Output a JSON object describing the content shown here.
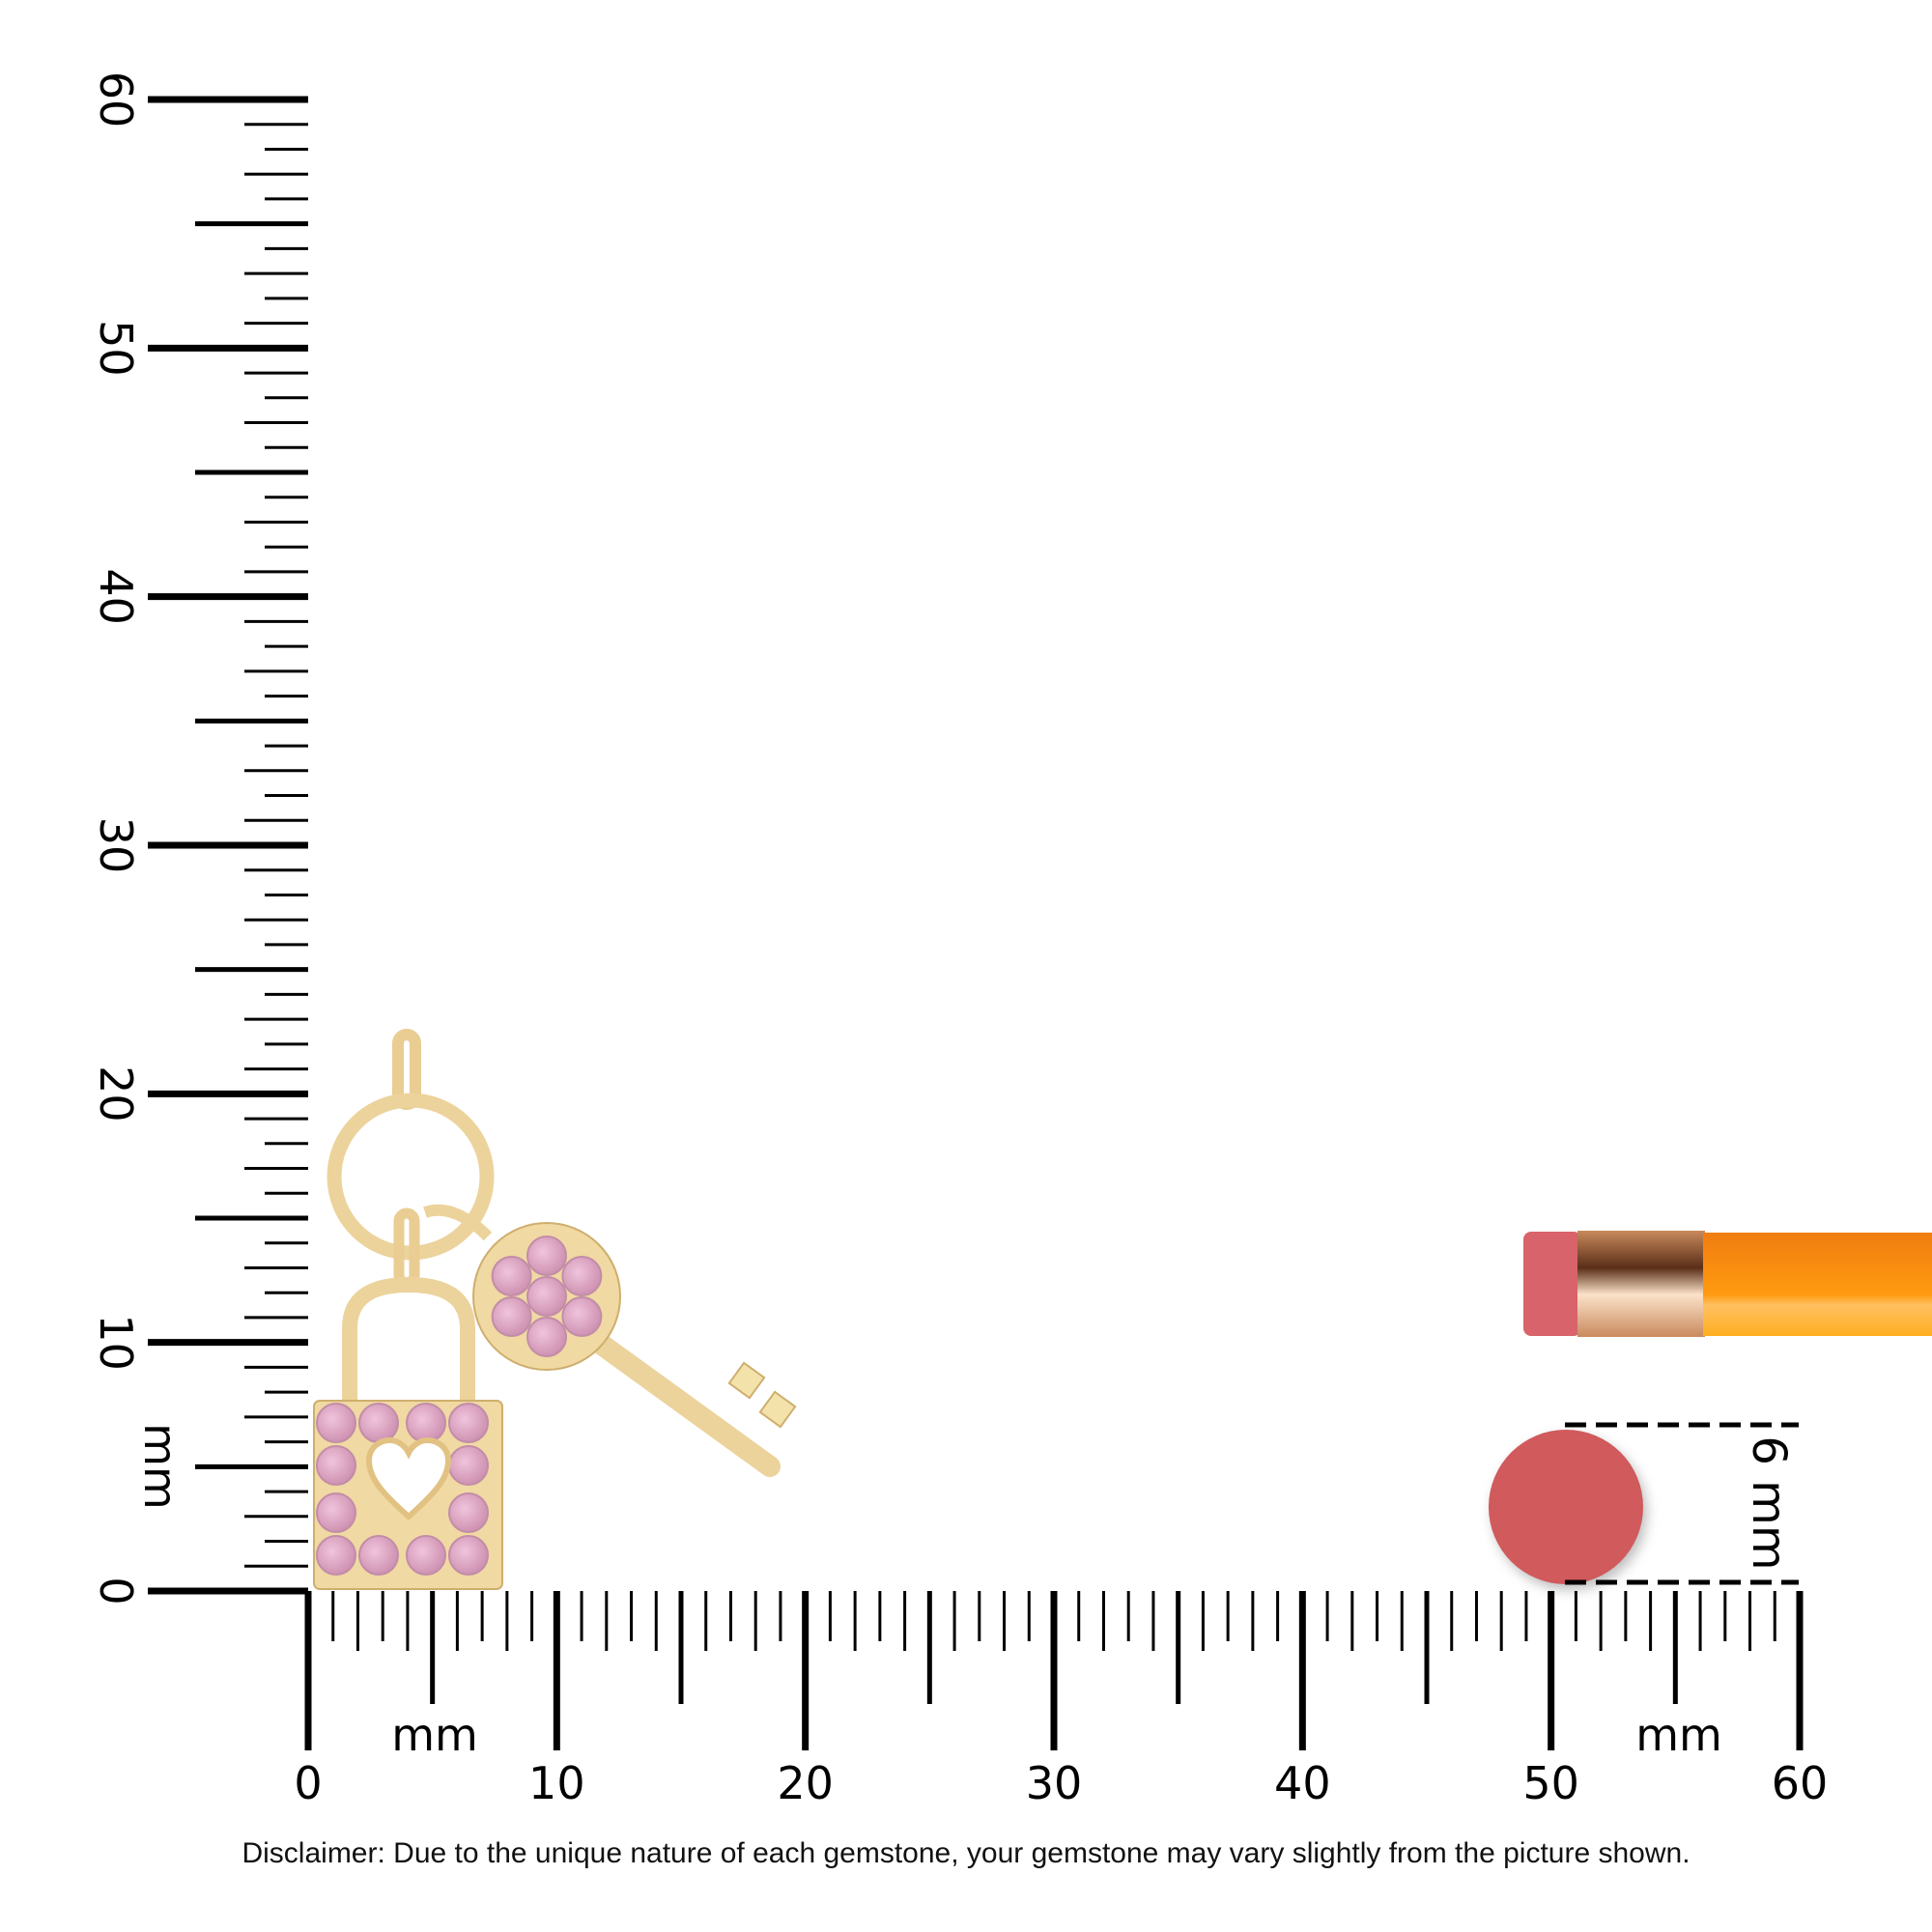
{
  "ruler": {
    "unit_label": "mm",
    "range_mm": [
      0,
      60
    ],
    "horizontal_labels": [
      "0",
      "10",
      "20",
      "30",
      "40",
      "50",
      "60"
    ],
    "vertical_labels": [
      "0",
      "10",
      "20",
      "30",
      "40",
      "50",
      "60"
    ]
  },
  "reference": {
    "pencil_eraser_dimension": "6 mm",
    "eraser_color": "#d05a5c",
    "pencil_color": "#ff9a1a"
  },
  "product": {
    "metal_color": "#f0d9a2",
    "stone_color": "#dda3c2",
    "lock_stones": 12,
    "key_stones": 7
  },
  "disclaimer": "Disclaimer: Due to the unique nature of each gemstone, your gemstone may vary slightly from the picture shown."
}
